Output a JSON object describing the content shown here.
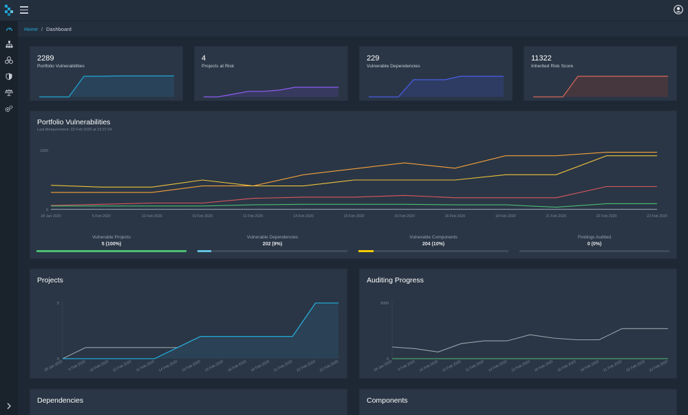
{
  "breadcrumb": {
    "home": "Home",
    "separator": "/",
    "current": "Dashboard"
  },
  "stats": [
    {
      "value": "2289",
      "label": "Portfolio Vulnerabilities",
      "color": "#20a8d8"
    },
    {
      "value": "4",
      "label": "Projects at Risk",
      "color": "#8e5cf0"
    },
    {
      "value": "229",
      "label": "Vulnerable Dependencies",
      "color": "#4a5ee8"
    },
    {
      "value": "11322",
      "label": "Inherited Risk Score",
      "color": "#d8695a"
    }
  ],
  "portfolio": {
    "title": "Portfolio Vulnerabilities",
    "subtitle": "Last Measurement: 22 Feb 2020 at 23:37:24"
  },
  "progress": [
    {
      "label": "Vulnerable Projects",
      "value": "5 (100%)",
      "percent": 100,
      "color": "#4dbd74"
    },
    {
      "label": "Vulnerable Dependencies",
      "value": "202 (9%)",
      "percent": 9,
      "color": "#63c2de"
    },
    {
      "label": "Vulnerable Components",
      "value": "204 (10%)",
      "percent": 10,
      "color": "#f8cb00"
    },
    {
      "label": "Findings Audited",
      "value": "0 (0%)",
      "percent": 0,
      "color": "#4dbd74"
    }
  ],
  "projects_card": {
    "title": "Projects"
  },
  "auditing_card": {
    "title": "Auditing Progress"
  },
  "dependencies_card": {
    "title": "Dependencies"
  },
  "components_card": {
    "title": "Components"
  },
  "icons": {
    "logo": "dependency-track-logo-icon",
    "menu": "hamburger-menu-icon",
    "user": "user-avatar-icon",
    "sidebar": [
      "dashboard-gauge-icon",
      "projects-hierarchy-icon",
      "components-icon",
      "vulnerabilities-shield-icon",
      "license-scale-icon",
      "admin-gears-icon"
    ],
    "toggle": "chevron-right-icon"
  },
  "chart_data": [
    {
      "type": "line",
      "title": "Portfolio Vulnerabilities",
      "x": [
        "28 Jan 2020",
        "5 Feb 2020",
        "10 Feb 2020",
        "10 Feb 2020",
        "11 Feb 2020",
        "14 Feb 2020",
        "15 Feb 2020",
        "15 Feb 2020",
        "16 Feb 2020",
        "18 Feb 2020",
        "21 Feb 2020",
        "22 Feb 2020",
        "22 Feb 2020"
      ],
      "yticks": [
        "0",
        "1000"
      ],
      "ylim": [
        0,
        1000
      ],
      "series": [
        {
          "color": "#f8a23a",
          "values": [
            290,
            290,
            290,
            400,
            400,
            590,
            690,
            790,
            700,
            910,
            910,
            970,
            970
          ]
        },
        {
          "color": "#f0c33c",
          "values": [
            410,
            380,
            380,
            500,
            400,
            400,
            500,
            500,
            500,
            590,
            590,
            910,
            910
          ]
        },
        {
          "color": "#e0585f",
          "values": [
            70,
            90,
            110,
            110,
            190,
            210,
            210,
            240,
            200,
            200,
            200,
            390,
            390
          ]
        },
        {
          "color": "#4dbd74",
          "values": [
            60,
            60,
            60,
            60,
            80,
            90,
            90,
            90,
            80,
            80,
            40,
            100,
            100
          ]
        },
        {
          "color": "#8e99a8",
          "values": [
            5,
            5,
            5,
            5,
            5,
            5,
            5,
            5,
            5,
            5,
            5,
            5,
            5
          ]
        }
      ]
    },
    {
      "type": "area",
      "title": "Projects",
      "x": [
        "28 Jan 2020",
        "5 Feb 2020",
        "10 Feb 2020",
        "10 Feb 2020",
        "11 Feb 2020",
        "14 Feb 2020",
        "15 Feb 2020",
        "15 Feb 2020",
        "16 Feb 2020",
        "18 Feb 2020",
        "21 Feb 2020",
        "22 Feb 2020",
        "22 Feb 2020"
      ],
      "yticks": [
        "0",
        "5"
      ],
      "ylim": [
        0,
        5
      ],
      "series": [
        {
          "color": "#9aa4ae",
          "values": [
            0,
            1,
            1,
            1,
            1,
            1,
            2,
            2,
            2,
            2,
            2,
            5,
            5
          ]
        },
        {
          "color": "#20a8d8",
          "values": [
            0,
            0,
            0,
            0,
            0,
            1,
            2,
            2,
            2,
            2,
            2,
            5,
            5
          ]
        }
      ]
    },
    {
      "type": "line",
      "title": "Auditing Progress",
      "x": [
        "28 Jan 2020",
        "5 Feb 2020",
        "10 Feb 2020",
        "10 Feb 2020",
        "11 Feb 2020",
        "14 Feb 2020",
        "15 Feb 2020",
        "15 Feb 2020",
        "16 Feb 2020",
        "18 Feb 2020",
        "21 Feb 2020",
        "22 Feb 2020",
        "22 Feb 2020"
      ],
      "yticks": [
        "0",
        "5000"
      ],
      "ylim": [
        0,
        5000
      ],
      "series": [
        {
          "color": "#9aa4ae",
          "values": [
            1050,
            900,
            600,
            1350,
            1600,
            1600,
            2150,
            1850,
            1700,
            1700,
            2700,
            2700,
            2700
          ]
        },
        {
          "color": "#4dbd74",
          "values": [
            0,
            0,
            0,
            0,
            0,
            0,
            0,
            0,
            0,
            0,
            0,
            0,
            0
          ]
        }
      ]
    }
  ]
}
